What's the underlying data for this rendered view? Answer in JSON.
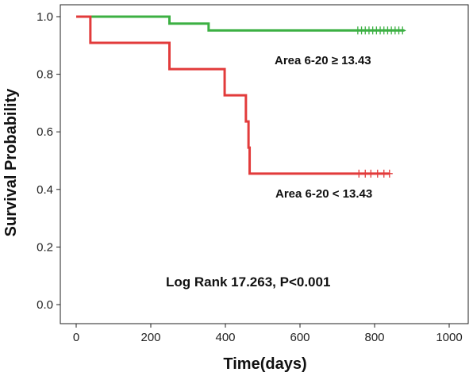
{
  "chart_data": {
    "type": "line",
    "subtype": "kaplan-meier step",
    "xlabel": "Time(days)",
    "ylabel": "Survival Probability",
    "xlim": [
      0,
      1000
    ],
    "ylim": [
      0,
      1
    ],
    "x_ticks": [
      "0",
      "200",
      "400",
      "600",
      "800",
      "1000"
    ],
    "y_ticks": [
      "0.0",
      "0.2",
      "0.4",
      "0.6",
      "0.8",
      "1.0"
    ],
    "grid": false,
    "series": [
      {
        "name": "Area 6-20 ≥ 13.43",
        "color": "#3cb043",
        "steps": [
          [
            0,
            1.0
          ],
          [
            250,
            0.976
          ],
          [
            355,
            0.952
          ],
          [
            880,
            0.952
          ]
        ],
        "censored": [
          755,
          765,
          775,
          785,
          795,
          805,
          815,
          825,
          835,
          845,
          855,
          865,
          875
        ]
      },
      {
        "name": "Area 6-20 < 13.43",
        "color": "#e23b3b",
        "steps": [
          [
            0,
            1.0
          ],
          [
            38,
            0.909
          ],
          [
            250,
            0.818
          ],
          [
            398,
            0.727
          ],
          [
            455,
            0.636
          ],
          [
            462,
            0.545
          ],
          [
            465,
            0.455
          ],
          [
            840,
            0.455
          ]
        ],
        "censored": [
          758,
          775,
          790,
          808,
          825,
          840
        ]
      }
    ],
    "annotations": [
      {
        "text": "Area 6-20 ≥ 13.43",
        "x": 550,
        "y": 0.86
      },
      {
        "text": "Area 6-20 < 13.43",
        "x": 535,
        "y": 0.38
      },
      {
        "text": "Log Rank 17.263, P<0.001",
        "x": 240,
        "y": 0.07
      }
    ]
  }
}
